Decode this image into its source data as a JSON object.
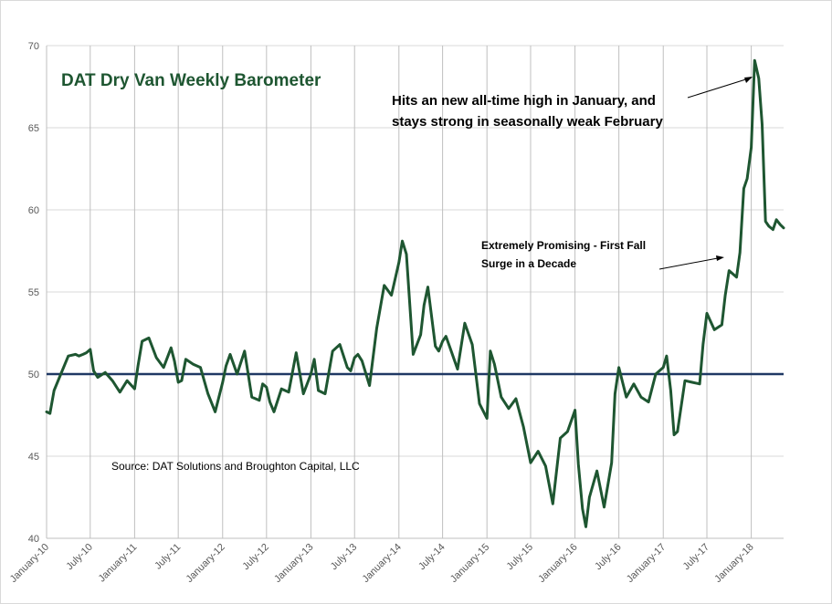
{
  "chart_data": {
    "type": "line",
    "title": "DAT Dry Van Weekly Barometer",
    "source": "Source: DAT Solutions and Broughton Capital, LLC",
    "xlabel": "",
    "ylabel": "",
    "ylim": [
      40,
      70
    ],
    "yticks": [
      40,
      45,
      50,
      55,
      60,
      65,
      70
    ],
    "xlim": [
      "2010-01-01",
      "2018-05-15"
    ],
    "x_tick_labels": [
      "January-10",
      "July-10",
      "January-11",
      "July-11",
      "January-12",
      "July-12",
      "January-13",
      "July-13",
      "January-14",
      "July-14",
      "January-15",
      "July-15",
      "January-16",
      "July-16",
      "January-17",
      "July-17",
      "January-18"
    ],
    "x_tick_dates": [
      "2010-01-01",
      "2010-07-01",
      "2011-01-01",
      "2011-07-01",
      "2012-01-01",
      "2012-07-01",
      "2013-01-01",
      "2013-07-01",
      "2014-01-01",
      "2014-07-01",
      "2015-01-01",
      "2015-07-01",
      "2016-01-01",
      "2016-07-01",
      "2017-01-01",
      "2017-07-01",
      "2018-01-01"
    ],
    "grid": "vertical",
    "reference_line": {
      "value": 50,
      "color": "#1f3864"
    },
    "line_color": "#1e5631",
    "annotations": [
      {
        "text": [
          "Hits an new all-time high in January, and",
          "stays strong in seasonally weak February"
        ]
      },
      {
        "text": [
          "Extremely Promising - First Fall",
          "Surge in a Decade"
        ]
      }
    ],
    "series": [
      {
        "x": [
          "2010-01-01",
          "2010-01-15",
          "2010-02-01",
          "2010-03-01",
          "2010-04-01",
          "2010-05-01",
          "2010-05-15",
          "2010-06-01",
          "2010-06-15",
          "2010-07-01",
          "2010-07-15",
          "2010-08-01",
          "2010-09-01",
          "2010-10-01",
          "2010-11-01",
          "2010-12-01",
          "2011-01-01",
          "2011-01-15",
          "2011-02-01",
          "2011-03-01",
          "2011-04-01",
          "2011-05-01",
          "2011-06-01",
          "2011-06-15",
          "2011-07-01",
          "2011-07-15",
          "2011-08-01",
          "2011-09-01",
          "2011-10-01",
          "2011-11-01",
          "2011-12-01",
          "2012-01-01",
          "2012-01-15",
          "2012-02-01",
          "2012-03-01",
          "2012-04-01",
          "2012-05-01",
          "2012-06-01",
          "2012-06-15",
          "2012-07-01",
          "2012-07-15",
          "2012-08-01",
          "2012-09-01",
          "2012-10-01",
          "2012-11-01",
          "2012-12-01",
          "2013-01-01",
          "2013-01-15",
          "2013-02-01",
          "2013-03-01",
          "2013-04-01",
          "2013-05-01",
          "2013-06-01",
          "2013-06-15",
          "2013-07-01",
          "2013-07-15",
          "2013-08-01",
          "2013-09-01",
          "2013-10-01",
          "2013-11-01",
          "2013-12-01",
          "2014-01-01",
          "2014-01-15",
          "2014-02-01",
          "2014-03-01",
          "2014-04-01",
          "2014-04-15",
          "2014-05-01",
          "2014-06-01",
          "2014-06-15",
          "2014-07-01",
          "2014-07-15",
          "2014-08-01",
          "2014-09-01",
          "2014-10-01",
          "2014-11-01",
          "2014-12-01",
          "2015-01-01",
          "2015-01-15",
          "2015-02-01",
          "2015-03-01",
          "2015-04-01",
          "2015-05-01",
          "2015-06-01",
          "2015-07-01",
          "2015-08-01",
          "2015-09-01",
          "2015-10-01",
          "2015-11-01",
          "2015-12-01",
          "2016-01-01",
          "2016-01-15",
          "2016-02-01",
          "2016-02-15",
          "2016-03-01",
          "2016-04-01",
          "2016-05-01",
          "2016-06-01",
          "2016-06-15",
          "2016-07-01",
          "2016-08-01",
          "2016-09-01",
          "2016-10-01",
          "2016-11-01",
          "2016-12-01",
          "2017-01-01",
          "2017-01-15",
          "2017-02-01",
          "2017-02-15",
          "2017-03-01",
          "2017-04-01",
          "2017-05-01",
          "2017-06-01",
          "2017-06-15",
          "2017-07-01",
          "2017-08-01",
          "2017-09-01",
          "2017-09-15",
          "2017-10-01",
          "2017-11-01",
          "2017-11-15",
          "2017-12-01",
          "2017-12-15",
          "2018-01-01",
          "2018-01-15",
          "2018-02-01",
          "2018-02-15",
          "2018-03-01",
          "2018-03-15",
          "2018-04-01",
          "2018-04-15",
          "2018-05-01",
          "2018-05-15"
        ],
        "values": [
          47.7,
          47.6,
          49.0,
          50.0,
          51.1,
          51.2,
          51.1,
          51.2,
          51.3,
          51.5,
          50.2,
          49.8,
          50.1,
          49.6,
          48.9,
          49.6,
          49.1,
          50.5,
          52.0,
          52.2,
          51.0,
          50.4,
          51.6,
          50.8,
          49.5,
          49.6,
          50.9,
          50.6,
          50.4,
          48.8,
          47.7,
          49.5,
          50.5,
          51.2,
          50.0,
          51.4,
          48.6,
          48.4,
          49.4,
          49.2,
          48.3,
          47.7,
          49.1,
          48.9,
          51.3,
          48.8,
          50.0,
          50.9,
          49.0,
          48.8,
          51.4,
          51.8,
          50.4,
          50.2,
          51.0,
          51.2,
          50.8,
          49.3,
          52.8,
          55.4,
          54.8,
          56.8,
          58.1,
          57.3,
          51.2,
          52.4,
          54.2,
          55.3,
          51.7,
          51.4,
          52.0,
          52.3,
          51.6,
          50.3,
          53.1,
          51.8,
          48.2,
          47.3,
          51.4,
          50.6,
          48.6,
          47.9,
          48.5,
          46.8,
          44.6,
          45.3,
          44.4,
          42.1,
          46.1,
          46.5,
          47.8,
          44.5,
          41.8,
          40.7,
          42.5,
          44.1,
          41.9,
          44.6,
          48.8,
          50.4,
          48.6,
          49.4,
          48.6,
          48.3,
          50.0,
          50.4,
          51.1,
          49.0,
          46.3,
          46.5,
          49.6,
          49.5,
          49.4,
          51.8,
          53.7,
          52.7,
          53.0,
          54.8,
          56.3,
          55.9,
          57.4,
          61.3,
          61.9,
          63.8,
          69.1,
          68.0,
          65.2,
          59.3,
          59.0,
          58.8,
          59.4,
          59.1,
          58.9
        ]
      }
    ]
  }
}
